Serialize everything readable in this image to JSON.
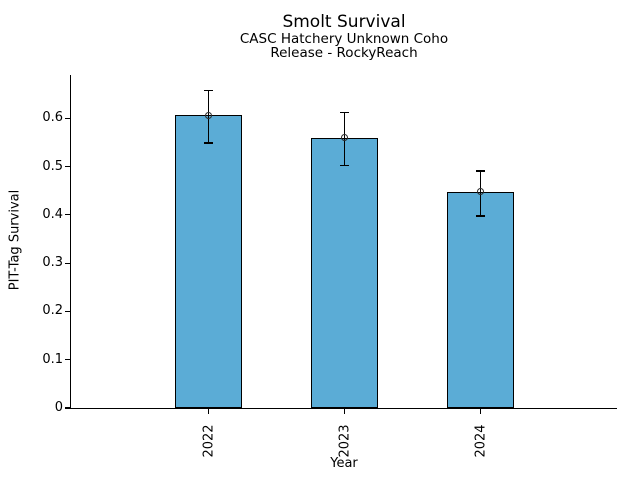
{
  "chart_data": {
    "type": "bar",
    "title": "Smolt Survival",
    "subtitle_lines": [
      "CASC Hatchery Unknown Coho",
      "Release - RockyReach"
    ],
    "xlabel": "Year",
    "ylabel": "PIT-Tag Survival",
    "categories": [
      "2022",
      "2023",
      "2024"
    ],
    "series": [
      {
        "name": "PIT-Tag Survival",
        "values": [
          0.606,
          0.56,
          0.448
        ],
        "error_low": [
          0.549,
          0.502,
          0.398
        ],
        "error_high": [
          0.657,
          0.612,
          0.491
        ]
      }
    ],
    "ylim": [
      0,
      0.69
    ],
    "yticks": [
      0,
      0.1,
      0.2,
      0.3,
      0.4,
      0.5,
      0.6
    ],
    "ytick_labels": [
      "0",
      "0.1",
      "0.2",
      "0.3",
      "0.4",
      "0.5",
      "0.6"
    ],
    "grid": false,
    "legend": false,
    "marker": "open-circle",
    "colors": {
      "bar_fill": "#5BACD6",
      "bar_edge": "#000000",
      "error_bar": "#000000",
      "marker_edge": "#2A2A2A",
      "axis": "#000000",
      "background": "#FFFFFF"
    }
  }
}
